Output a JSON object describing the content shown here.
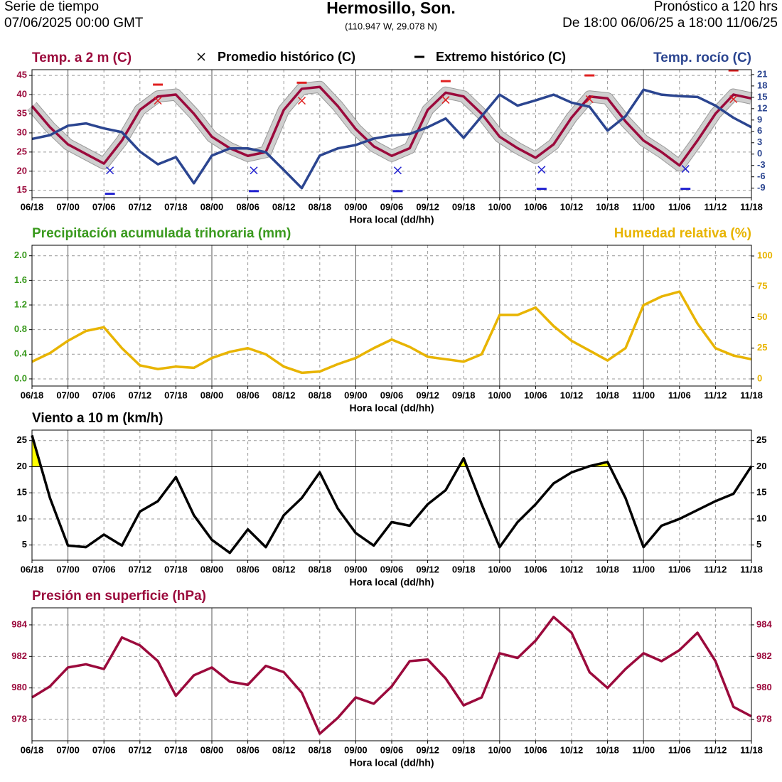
{
  "header": {
    "left_line1": "Serie de tiempo",
    "left_line2": "07/06/2025 00:00 GMT",
    "title": "Hermosillo,  Son.",
    "coords": "(110.947 W, 29.078 N)",
    "right_line1": "Pronóstico a 120 hrs",
    "right_line2": "De 18:00 06/06/25 a 18:00 11/06/25"
  },
  "chart_data": [
    {
      "type": "line",
      "xlabel": "Hora local (dd/hh)",
      "grid": true,
      "x": [
        "06/18",
        "06/21",
        "07/00",
        "07/03",
        "07/06",
        "07/09",
        "07/12",
        "07/15",
        "07/18",
        "07/21",
        "08/00",
        "08/03",
        "08/06",
        "08/09",
        "08/12",
        "08/15",
        "08/18",
        "08/21",
        "09/00",
        "09/03",
        "09/06",
        "09/09",
        "09/12",
        "09/15",
        "09/18",
        "09/21",
        "10/00",
        "10/03",
        "10/06",
        "10/09",
        "10/12",
        "10/15",
        "10/18",
        "10/21",
        "11/00",
        "11/03",
        "11/06",
        "11/09",
        "11/12",
        "11/15",
        "11/18"
      ],
      "xlim": [
        "06/18",
        "11/18"
      ],
      "xticks": [
        "06/18",
        "07/00",
        "07/06",
        "07/12",
        "07/18",
        "08/00",
        "08/06",
        "08/12",
        "08/18",
        "09/00",
        "09/06",
        "09/12",
        "09/18",
        "10/00",
        "10/06",
        "10/12",
        "10/18",
        "11/00",
        "11/06",
        "11/12",
        "11/18"
      ],
      "ylim": [
        13.1,
        46.5
      ],
      "yticks": [
        15,
        20,
        25,
        30,
        35,
        40,
        45
      ],
      "y2lim": [
        -11.5,
        22.3
      ],
      "y2ticks": [
        -9,
        -6,
        -3,
        0,
        3,
        6,
        9,
        12,
        15,
        18,
        21
      ],
      "series": [
        {
          "name": "Temp. a 2 m (C)",
          "color": "#9b0a3c",
          "values": [
            37,
            31.5,
            27,
            24.5,
            22,
            28,
            36,
            39.5,
            40,
            35,
            29,
            26,
            24,
            25,
            36,
            41.5,
            42,
            37,
            31,
            26.5,
            24,
            26,
            36,
            40.5,
            39.5,
            35,
            29,
            26,
            23.5,
            27,
            34,
            39.5,
            39,
            33,
            28,
            25,
            21.5,
            28,
            35,
            40,
            39
          ]
        },
        {
          "name": "Temp. rocío (C)",
          "color": "#2b4590",
          "axis": "y2",
          "values": [
            4,
            5,
            7.5,
            8.1,
            6.8,
            5.8,
            0.7,
            -2.7,
            -0.8,
            -7.7,
            -0.4,
            1.5,
            1.5,
            0.5,
            -4.2,
            -9,
            -0.4,
            1.5,
            2.4,
            4.1,
            4.9,
            5.3,
            7.1,
            9.4,
            4.3,
            10,
            15.7,
            12.8,
            14.2,
            15.7,
            13.6,
            12.5,
            6.2,
            10,
            17,
            15.7,
            15.3,
            15.1,
            12.8,
            9.6,
            7.1
          ]
        },
        {
          "name": "Promedio histórico (C)",
          "marker": "x",
          "x": [
            "07/15",
            "08/15",
            "09/15",
            "10/15",
            "11/15",
            "07/07",
            "08/07",
            "09/07",
            "10/07",
            "11/07"
          ],
          "values": [
            38.4,
            38.4,
            38.6,
            38.8,
            38.8,
            20.2,
            20.2,
            20.2,
            20.4,
            20.6
          ],
          "colors": [
            "#e02020",
            "#e02020",
            "#e02020",
            "#e02020",
            "#e02020",
            "#2020d0",
            "#2020d0",
            "#2020d0",
            "#2020d0",
            "#2020d0"
          ]
        },
        {
          "name": "Extremo histórico (C)",
          "marker": "dash",
          "x": [
            "07/15",
            "08/15",
            "09/15",
            "10/15",
            "11/15",
            "07/07",
            "08/07",
            "09/07",
            "10/07",
            "11/07"
          ],
          "values": [
            42.6,
            43.1,
            43.5,
            45,
            46.3,
            14.1,
            14.8,
            14.8,
            15.4,
            15.4
          ],
          "colors": [
            "#e02020",
            "#e02020",
            "#e02020",
            "#e02020",
            "#e02020",
            "#2020d0",
            "#2020d0",
            "#2020d0",
            "#2020d0",
            "#2020d0"
          ]
        }
      ]
    },
    {
      "type": "line",
      "xlabel": "Hora local (dd/hh)",
      "grid": true,
      "ylabel": "Precipitación acumulada trihoraria (mm)",
      "x": [
        "06/18",
        "06/21",
        "07/00",
        "07/03",
        "07/06",
        "07/09",
        "07/12",
        "07/15",
        "07/18",
        "07/21",
        "08/00",
        "08/03",
        "08/06",
        "08/09",
        "08/12",
        "08/15",
        "08/18",
        "08/21",
        "09/00",
        "09/03",
        "09/06",
        "09/09",
        "09/12",
        "09/15",
        "09/18",
        "09/21",
        "10/00",
        "10/03",
        "10/06",
        "10/09",
        "10/12",
        "10/15",
        "10/18",
        "10/21",
        "11/00",
        "11/03",
        "11/06",
        "11/09",
        "11/12",
        "11/15",
        "11/18"
      ],
      "xlim": [
        "06/18",
        "11/18"
      ],
      "xticks": [
        "06/18",
        "07/00",
        "07/06",
        "07/12",
        "07/18",
        "08/00",
        "08/06",
        "08/12",
        "08/18",
        "09/00",
        "09/06",
        "09/12",
        "09/18",
        "10/00",
        "10/06",
        "10/12",
        "10/18",
        "11/00",
        "11/06",
        "11/12",
        "11/18"
      ],
      "ylim": [
        -0.116,
        2.17
      ],
      "yticks": [
        {
          "value": 0,
          "label": "0.0"
        },
        0.4,
        0.8,
        1.2,
        1.6,
        {
          "value": 2,
          "label": "2.0"
        }
      ],
      "y2lim": [
        -5.8,
        108.7
      ],
      "y2ticks": [
        0,
        25,
        50,
        75,
        100
      ],
      "series": [
        {
          "name": "Humedad relativa (%)",
          "color": "#e8b400",
          "axis": "y2",
          "values": [
            14,
            21,
            31,
            39,
            42,
            25,
            11,
            8,
            10,
            9,
            17,
            22,
            25,
            20,
            10,
            5,
            6,
            12,
            17,
            25,
            32,
            26,
            18,
            16,
            14,
            20,
            52,
            52,
            58,
            43,
            31,
            23,
            15,
            25,
            60,
            67,
            71,
            45,
            25,
            19,
            16
          ]
        }
      ]
    },
    {
      "type": "line",
      "xlabel": "Hora local (dd/hh)",
      "grid": true,
      "mirror_ticks": true,
      "threshold": 20,
      "threshold_color": "#ffff00",
      "x": [
        "06/18",
        "06/21",
        "07/00",
        "07/03",
        "07/06",
        "07/09",
        "07/12",
        "07/15",
        "07/18",
        "07/21",
        "08/00",
        "08/03",
        "08/06",
        "08/09",
        "08/12",
        "08/15",
        "08/18",
        "08/21",
        "09/00",
        "09/03",
        "09/06",
        "09/09",
        "09/12",
        "09/15",
        "09/18",
        "09/21",
        "10/00",
        "10/03",
        "10/06",
        "10/09",
        "10/12",
        "10/15",
        "10/18",
        "10/21",
        "11/00",
        "11/03",
        "11/06",
        "11/09",
        "11/12",
        "11/15",
        "11/18"
      ],
      "xlim": [
        "06/18",
        "11/18"
      ],
      "xticks": [
        "06/18",
        "07/00",
        "07/06",
        "07/12",
        "07/18",
        "08/00",
        "08/06",
        "08/12",
        "08/18",
        "09/00",
        "09/06",
        "09/12",
        "09/18",
        "10/00",
        "10/06",
        "10/12",
        "10/18",
        "11/00",
        "11/06",
        "11/12",
        "11/18"
      ],
      "ylim": [
        2.1,
        27
      ],
      "yticks": [
        5,
        10,
        15,
        20,
        25
      ],
      "series": [
        {
          "name": "Viento a 10 m (km/h)",
          "color": "#000000",
          "values": [
            26,
            14,
            4.9,
            4.6,
            7,
            4.9,
            11.4,
            13.4,
            18,
            10.7,
            6,
            3.5,
            8,
            4.6,
            10.7,
            14,
            18.9,
            12,
            7.3,
            4.9,
            9.4,
            8.7,
            12.8,
            15.5,
            21.6,
            12.8,
            4.6,
            9.4,
            12.8,
            16.8,
            18.9,
            20.1,
            20.9,
            14,
            4.6,
            8.7,
            10,
            11.7,
            13.4,
            14.8,
            20.1
          ]
        }
      ]
    },
    {
      "type": "line",
      "xlabel": "Hora local (dd/hh)",
      "grid": true,
      "mirror_ticks": true,
      "x": [
        "06/18",
        "06/21",
        "07/00",
        "07/03",
        "07/06",
        "07/09",
        "07/12",
        "07/15",
        "07/18",
        "07/21",
        "08/00",
        "08/03",
        "08/06",
        "08/09",
        "08/12",
        "08/15",
        "08/18",
        "08/21",
        "09/00",
        "09/03",
        "09/06",
        "09/09",
        "09/12",
        "09/15",
        "09/18",
        "09/21",
        "10/00",
        "10/03",
        "10/06",
        "10/09",
        "10/12",
        "10/15",
        "10/18",
        "10/21",
        "11/00",
        "11/03",
        "11/06",
        "11/09",
        "11/12",
        "11/15",
        "11/18"
      ],
      "xlim": [
        "06/18",
        "11/18"
      ],
      "xticks": [
        "06/18",
        "07/00",
        "07/06",
        "07/12",
        "07/18",
        "08/00",
        "08/06",
        "08/12",
        "08/18",
        "09/00",
        "09/06",
        "09/12",
        "09/18",
        "10/00",
        "10/06",
        "10/12",
        "10/18",
        "11/00",
        "11/06",
        "11/12",
        "11/18"
      ],
      "ylim": [
        976.65,
        985.08
      ],
      "yticks": [
        978,
        980,
        982,
        984
      ],
      "series": [
        {
          "name": "Presión en superficie (hPa)",
          "color": "#9b0a3c",
          "values": [
            979.4,
            980.1,
            981.3,
            981.5,
            981.2,
            983.2,
            982.7,
            981.7,
            979.5,
            980.8,
            981.3,
            980.4,
            980.2,
            981.4,
            981,
            979.7,
            977.1,
            978.1,
            979.4,
            979,
            980.1,
            981.7,
            981.8,
            980.6,
            978.9,
            979.4,
            982.2,
            981.9,
            983,
            984.5,
            983.5,
            981,
            980,
            981.2,
            982.2,
            981.7,
            982.4,
            983.5,
            981.7,
            978.8,
            978.2
          ]
        }
      ]
    }
  ]
}
